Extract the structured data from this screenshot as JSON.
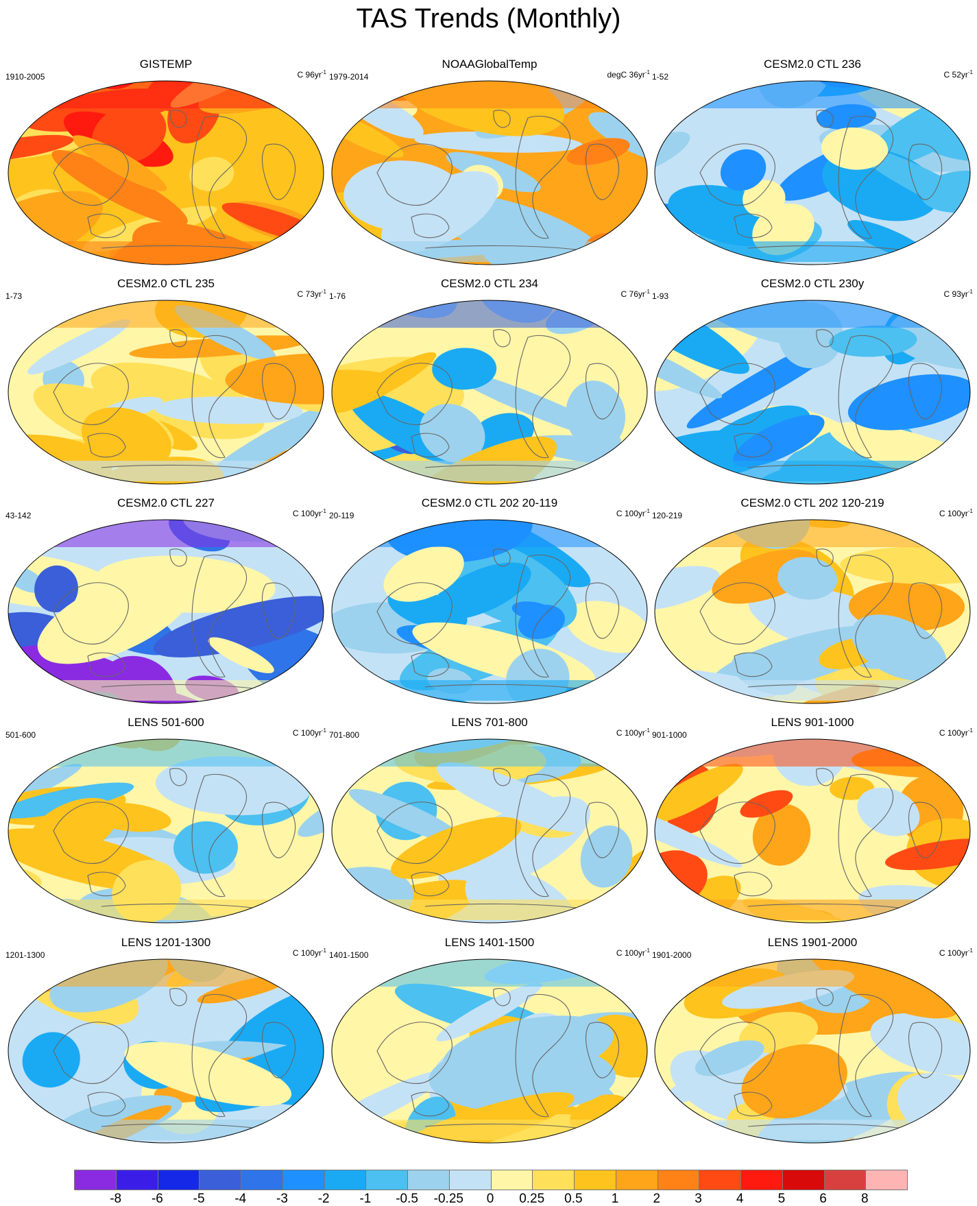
{
  "title": "TAS Trends (Monthly)",
  "panels": [
    {
      "title": "GISTEMP",
      "left": "1910-2005",
      "right": "C 96yr",
      "exp": "-1",
      "theme": "warm-obs"
    },
    {
      "title": "NOAAGlobalTemp",
      "left": "1979-2014",
      "right": "degC 36yr",
      "exp": "-1",
      "theme": "warm-noaa"
    },
    {
      "title": "CESM2.0 CTL 236",
      "left": "1-52",
      "right": "C 52yr",
      "exp": "-1",
      "theme": "cool"
    },
    {
      "title": "CESM2.0 CTL 235",
      "left": "1-73",
      "right": "C 73yr",
      "exp": "-1",
      "theme": "mixed-warm"
    },
    {
      "title": "CESM2.0 CTL 234",
      "left": "1-76",
      "right": "C 76yr",
      "exp": "-1",
      "theme": "mixed-warm-arctic-cold"
    },
    {
      "title": "CESM2.0 CTL 230y",
      "left": "1-93",
      "right": "C 93yr",
      "exp": "-1",
      "theme": "cool"
    },
    {
      "title": "CESM2.0 CTL 227",
      "left": "43-142",
      "right": "C 100yr",
      "exp": "-1",
      "theme": "very-cold-north"
    },
    {
      "title": "CESM2.0 CTL 202 20-119",
      "left": "20-119",
      "right": "C 100yr",
      "exp": "-1",
      "theme": "cool"
    },
    {
      "title": "CESM2.0 CTL 202 120-219",
      "left": "120-219",
      "right": "C 100yr",
      "exp": "-1",
      "theme": "mixed-warm"
    },
    {
      "title": "LENS 501-600",
      "left": "501-600",
      "right": "C 100yr",
      "exp": "-1",
      "theme": "mixed"
    },
    {
      "title": "LENS 701-800",
      "left": "701-800",
      "right": "C 100yr",
      "exp": "-1",
      "theme": "mixed"
    },
    {
      "title": "LENS 901-1000",
      "left": "901-1000",
      "right": "C 100yr",
      "exp": "-1",
      "theme": "warm-north"
    },
    {
      "title": "LENS 1201-1300",
      "left": "1201-1300",
      "right": "C 100yr",
      "exp": "-1",
      "theme": "mixed-cool"
    },
    {
      "title": "LENS 1401-1500",
      "left": "1401-1500",
      "right": "C 100yr",
      "exp": "-1",
      "theme": "mixed"
    },
    {
      "title": "LENS 1901-2000",
      "left": "1901-2000",
      "right": "C 100yr",
      "exp": "-1",
      "theme": "mixed-warm"
    }
  ],
  "colorbar": {
    "labels": [
      "-8",
      "-6",
      "-5",
      "-4",
      "-3",
      "-2",
      "-1",
      "-0.5",
      "-0.25",
      "0",
      "0.25",
      "0.5",
      "1",
      "2",
      "3",
      "4",
      "5",
      "6",
      "8"
    ],
    "colors": [
      "#8a2be2",
      "#3a1ee8",
      "#1528e8",
      "#3a5fd8",
      "#2f74e8",
      "#1e90ff",
      "#1aaaf4",
      "#4cc0f0",
      "#9cd2ee",
      "#c4e2f6",
      "#fff6a8",
      "#ffe05a",
      "#ffc31e",
      "#ffa51a",
      "#ff8216",
      "#ff4a14",
      "#ff1a10",
      "#d80a0a",
      "#d84040",
      "#ffb4b4"
    ]
  }
}
